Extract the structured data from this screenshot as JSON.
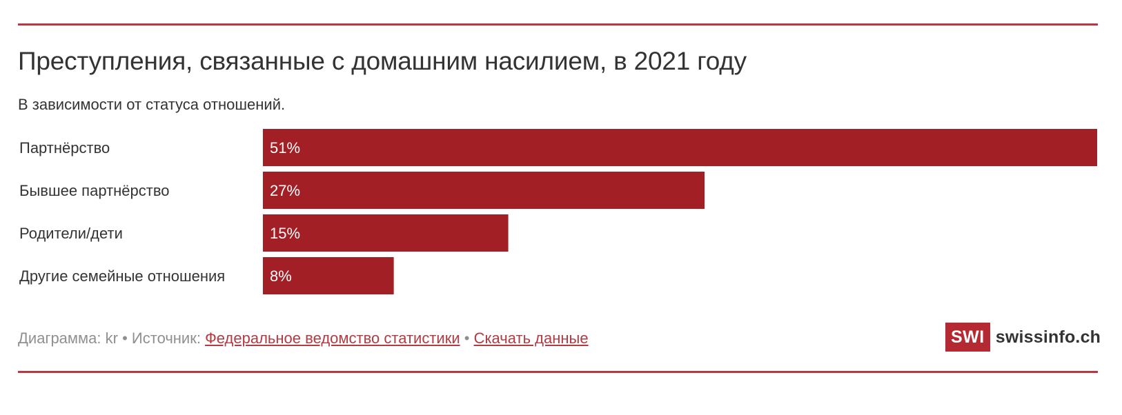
{
  "colors": {
    "accent": "#b33a41",
    "bar": "#a31f26",
    "text": "#333333",
    "muted": "#8f8f8f",
    "logo_bg": "#b52a32"
  },
  "chart_data": {
    "type": "bar",
    "orientation": "horizontal",
    "title": "Преступления, связанные с домашним насилием, в 2021 году",
    "subtitle": "В зависимости от статуса отношений.",
    "categories": [
      "Партнёрство",
      "Бывшее партнёрство",
      "Родители/дети",
      "Другие семейные отношения"
    ],
    "values": [
      51,
      27,
      15,
      8
    ],
    "value_labels": [
      "51%",
      "27%",
      "15%",
      "8%"
    ],
    "unit": "%",
    "xlim": [
      0,
      51
    ],
    "grid": false,
    "legend": "none"
  },
  "footer": {
    "chart_prefix": "Диаграмма: kr",
    "separator": "•",
    "source_prefix": "Источник:",
    "source_link": "Федеральное ведомство статистики",
    "download_link": "Скачать данные"
  },
  "logo": {
    "mark": "SWI",
    "name": "swissinfo.ch"
  }
}
